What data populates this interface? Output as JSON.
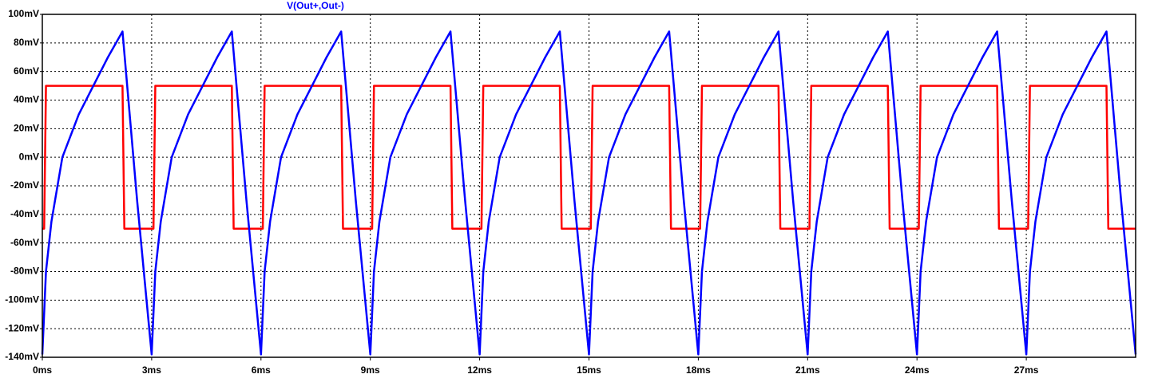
{
  "chart_data": {
    "type": "line",
    "xlim": [
      0,
      30
    ],
    "ylim": [
      -140,
      100
    ],
    "grid": true,
    "xticks": [
      {
        "value": 0,
        "label": "0ms"
      },
      {
        "value": 3,
        "label": "3ms"
      },
      {
        "value": 6,
        "label": "6ms"
      },
      {
        "value": 9,
        "label": "9ms"
      },
      {
        "value": 12,
        "label": "12ms"
      },
      {
        "value": 15,
        "label": "15ms"
      },
      {
        "value": 18,
        "label": "18ms"
      },
      {
        "value": 21,
        "label": "21ms"
      },
      {
        "value": 24,
        "label": "24ms"
      },
      {
        "value": 27,
        "label": "27ms"
      }
    ],
    "yticks": [
      {
        "value": 100,
        "label": "100mV"
      },
      {
        "value": 80,
        "label": "80mV"
      },
      {
        "value": 60,
        "label": "60mV"
      },
      {
        "value": 40,
        "label": "40mV"
      },
      {
        "value": 20,
        "label": "20mV"
      },
      {
        "value": 0,
        "label": "0mV"
      },
      {
        "value": -20,
        "label": "-20mV"
      },
      {
        "value": -40,
        "label": "-40mV"
      },
      {
        "value": -60,
        "label": "-60mV"
      },
      {
        "value": -80,
        "label": "-80mV"
      },
      {
        "value": -100,
        "label": "-100mV"
      },
      {
        "value": -120,
        "label": "-120mV"
      },
      {
        "value": -140,
        "label": "-140mV"
      }
    ],
    "series": [
      {
        "name": "V(Out+,Out-)",
        "color": "#0000ff",
        "x": [
          0,
          0.1,
          0.25,
          0.55,
          1,
          1.4,
          1.8,
          2.2,
          2.6,
          3,
          3.1,
          3.25,
          3.55,
          4,
          4.4,
          4.8,
          5.2,
          5.6,
          6,
          6.1,
          6.25,
          6.55,
          7,
          7.4,
          7.8,
          8.2,
          8.6,
          9,
          9.1,
          9.25,
          9.55,
          10,
          10.4,
          10.8,
          11.2,
          11.6,
          12,
          12.1,
          12.25,
          12.55,
          13,
          13.4,
          13.8,
          14.2,
          14.6,
          15,
          15.1,
          15.25,
          15.55,
          16,
          16.4,
          16.8,
          17.2,
          17.6,
          18,
          18.1,
          18.25,
          18.55,
          19,
          19.4,
          19.8,
          20.2,
          20.6,
          21,
          21.1,
          21.25,
          21.55,
          22,
          22.4,
          22.8,
          23.2,
          23.6,
          24,
          24.1,
          24.25,
          24.55,
          25,
          25.4,
          25.8,
          26.2,
          26.6,
          27,
          27.1,
          27.25,
          27.55,
          28,
          28.4,
          28.8,
          29.2,
          29.6,
          30
        ],
        "values": [
          -138,
          -80,
          -45,
          0,
          30,
          50,
          70,
          88,
          -30,
          -138,
          -80,
          -45,
          0,
          30,
          50,
          70,
          88,
          -30,
          -138,
          -80,
          -45,
          0,
          30,
          50,
          70,
          88,
          -30,
          -138,
          -80,
          -45,
          0,
          30,
          50,
          70,
          88,
          -30,
          -138,
          -80,
          -45,
          0,
          30,
          50,
          70,
          88,
          -30,
          -138,
          -80,
          -45,
          0,
          30,
          50,
          70,
          88,
          -30,
          -138,
          -80,
          -45,
          0,
          30,
          50,
          70,
          88,
          -30,
          -138,
          -80,
          -45,
          0,
          30,
          50,
          70,
          88,
          -30,
          -138,
          -80,
          -45,
          0,
          30,
          50,
          70,
          88,
          -30,
          -138,
          -80,
          -45,
          0,
          30,
          50,
          70,
          88,
          -30,
          -138
        ]
      },
      {
        "color": "#ff0000",
        "x": [
          0,
          0.05,
          0.1,
          2.2,
          2.25,
          3.05,
          3.1,
          5.2,
          5.25,
          6.05,
          6.1,
          8.2,
          8.25,
          9.05,
          9.1,
          11.2,
          11.25,
          12.05,
          12.1,
          14.2,
          14.25,
          15.05,
          15.1,
          17.2,
          17.25,
          18.05,
          18.1,
          20.2,
          20.25,
          21.05,
          21.1,
          23.2,
          23.25,
          24.05,
          24.1,
          26.2,
          26.25,
          27.05,
          27.1,
          29.2,
          29.25,
          30
        ],
        "values": [
          -50,
          -50,
          50,
          50,
          -50,
          -50,
          50,
          50,
          -50,
          -50,
          50,
          50,
          -50,
          -50,
          50,
          50,
          -50,
          -50,
          50,
          50,
          -50,
          -50,
          50,
          50,
          -50,
          -50,
          50,
          50,
          -50,
          -50,
          50,
          50,
          -50,
          -50,
          50,
          50,
          -50,
          -50,
          50,
          50,
          -50,
          -50
        ]
      }
    ]
  }
}
